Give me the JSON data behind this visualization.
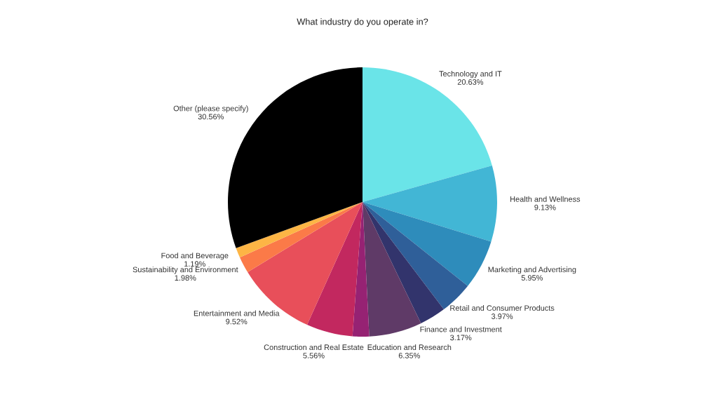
{
  "chart_data": {
    "type": "pie",
    "title": "What industry do you operate in?",
    "categories": [
      "Technology and IT",
      "Health and Wellness",
      "Marketing and Advertising",
      "Retail and Consumer Products",
      "Finance and Investment",
      "Education and Research",
      null,
      "Construction and Real Estate",
      "Entertainment and Media",
      "Sustainability and Environment",
      "Food and Beverage",
      "Other (please specify)"
    ],
    "values": [
      20.63,
      9.13,
      5.95,
      3.97,
      3.17,
      6.35,
      1.99,
      5.56,
      9.52,
      1.98,
      1.19,
      30.56
    ],
    "value_labels": [
      "20.63%",
      "9.13%",
      "5.95%",
      "3.97%",
      "3.17%",
      "6.35%",
      null,
      "5.56%",
      "9.52%",
      "1.98%",
      "1.19%",
      "30.56%"
    ],
    "colors": [
      "#6ae4e8",
      "#42b6d5",
      "#2e8cbb",
      "#2f5f99",
      "#32346c",
      "#5f3a67",
      "#962273",
      "#c2285f",
      "#e84f5a",
      "#fb7a48",
      "#fdb545",
      "#000000"
    ]
  }
}
